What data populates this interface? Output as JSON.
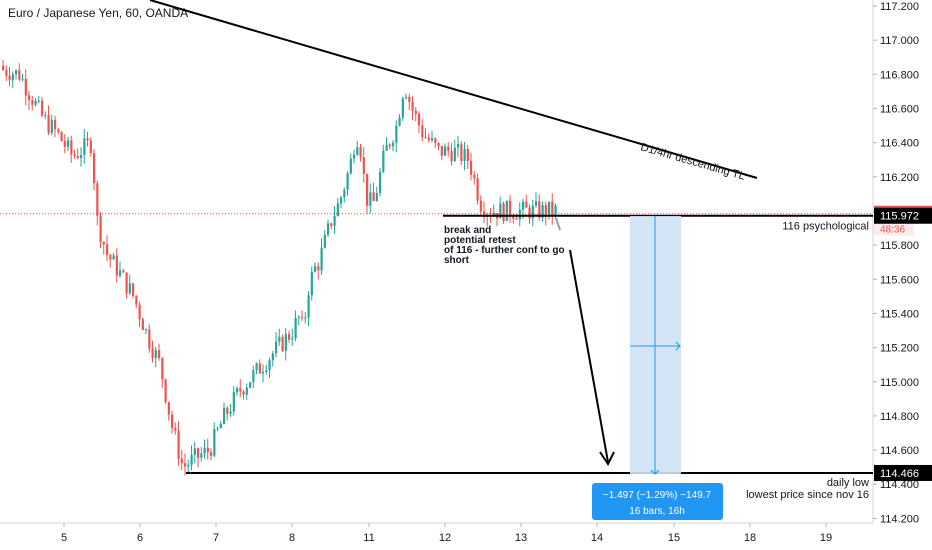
{
  "chart_data": {
    "type": "candlestick",
    "title": "Euro / Japanese Yen, 60, OANDA",
    "y_axis": {
      "ticks": [
        "114.200",
        "114.400",
        "114.600",
        "114.800",
        "115.000",
        "115.200",
        "115.400",
        "115.600",
        "115.800",
        "116.000",
        "116.200",
        "116.400",
        "116.600",
        "116.800",
        "117.000",
        "117.200"
      ],
      "range": [
        114.15,
        117.25
      ]
    },
    "x_axis": {
      "ticks": [
        {
          "label": "5",
          "day": 5
        },
        {
          "label": "6",
          "day": 6
        },
        {
          "label": "7",
          "day": 7
        },
        {
          "label": "8",
          "day": 8
        },
        {
          "label": "11",
          "day": 11
        },
        {
          "label": "12",
          "day": 12
        },
        {
          "label": "13",
          "day": 13
        },
        {
          "label": "14",
          "day": 14
        },
        {
          "label": "15",
          "day": 15
        },
        {
          "label": "18",
          "day": 18
        },
        {
          "label": "19",
          "day": 19
        }
      ]
    },
    "price_path": [
      [
        4.0,
        116.85
      ],
      [
        4.4,
        116.8
      ],
      [
        4.7,
        116.55
      ],
      [
        4.9,
        116.45
      ],
      [
        5.1,
        116.32
      ],
      [
        5.35,
        116.4
      ],
      [
        5.42,
        115.95
      ],
      [
        5.55,
        115.75
      ],
      [
        5.7,
        115.65
      ],
      [
        5.9,
        115.5
      ],
      [
        6.1,
        115.25
      ],
      [
        6.25,
        115.1
      ],
      [
        6.4,
        114.75
      ],
      [
        6.55,
        114.5
      ],
      [
        6.7,
        114.55
      ],
      [
        6.9,
        114.6
      ],
      [
        7.1,
        114.8
      ],
      [
        7.3,
        114.95
      ],
      [
        7.5,
        115.05
      ],
      [
        7.8,
        115.2
      ],
      [
        8.0,
        115.3
      ],
      [
        8.2,
        115.38
      ],
      [
        8.4,
        115.3
      ],
      [
        8.6,
        115.55
      ],
      [
        8.8,
        115.65
      ],
      [
        9.0,
        115.7
      ],
      [
        9.2,
        115.8
      ],
      [
        9.5,
        115.95
      ],
      [
        9.8,
        116.05
      ],
      [
        10.2,
        116.25
      ],
      [
        10.45,
        116.45
      ],
      [
        10.6,
        116.4
      ],
      [
        10.75,
        116.2
      ],
      [
        10.9,
        116.05
      ],
      [
        11.05,
        116.05
      ],
      [
        11.2,
        116.35
      ],
      [
        11.35,
        116.5
      ],
      [
        11.45,
        116.75
      ],
      [
        11.55,
        116.6
      ],
      [
        11.7,
        116.45
      ],
      [
        11.9,
        116.35
      ],
      [
        12.1,
        116.35
      ],
      [
        12.3,
        116.3
      ],
      [
        12.45,
        116.05
      ],
      [
        12.55,
        116.0
      ]
    ],
    "current_price": "115.984",
    "countdown": "48:36",
    "price_labels": [
      "115.972",
      "114.466"
    ],
    "levels": [
      {
        "label": "116 psychological",
        "price": 115.972
      },
      {
        "label": "daily low",
        "price": 114.466
      },
      {
        "label": "lowest price since nov 16",
        "price": 114.466
      }
    ],
    "trendline_label": "D1/4hr descending TL",
    "annotation": [
      "break and",
      "potential retest",
      " of 116 -  further conf to go",
      "short"
    ],
    "projection": {
      "stats_line1": "−1.497 (−1.29%) −149.7",
      "stats_line2": "16 bars, 16h"
    },
    "colors": {
      "up": "#26a69a",
      "down": "#ef5350",
      "axis_text": "#131722",
      "price_tag": "#ef5350",
      "projection_fill": "#cfe2f7",
      "projection_line": "#2196f3",
      "stats_box": "#2196f3"
    }
  }
}
